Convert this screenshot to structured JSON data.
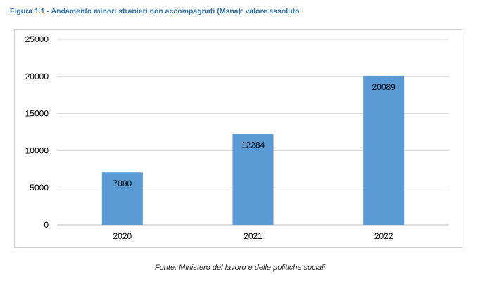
{
  "title": "Figura 1.1 - Andamento minori stranieri non accompagnati (Msna): valore assoluto",
  "source": "Fonte: Ministero del lavoro e delle politiche sociali",
  "colors": {
    "bar": "#5b9bd5",
    "grid": "#d9d9d9",
    "title": "#2e75b6"
  },
  "chart_data": {
    "type": "bar",
    "categories": [
      "2020",
      "2021",
      "2022"
    ],
    "values": [
      7080,
      12284,
      20089
    ],
    "data_labels": [
      "7080",
      "12284",
      "20089"
    ],
    "yticks": [
      "0",
      "5000",
      "10000",
      "15000",
      "20000",
      "25000"
    ],
    "ylim": [
      0,
      25000
    ],
    "grid": true,
    "legend": "none"
  }
}
